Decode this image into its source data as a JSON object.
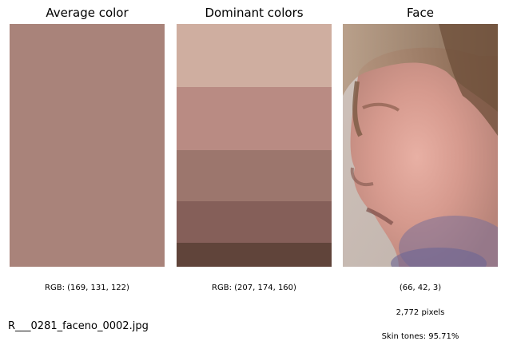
{
  "panels": {
    "average": {
      "title": "Average color",
      "rgb_text": "RGB: (169, 131, 122)",
      "color": "#a9837a"
    },
    "dominant": {
      "title": "Dominant colors",
      "rgb_text": "RGB: (207, 174, 160)",
      "bands": [
        {
          "color": "#cfaea0",
          "share": 0.26
        },
        {
          "color": "#b98b83",
          "share": 0.26
        },
        {
          "color": "#9c766d",
          "share": 0.21
        },
        {
          "color": "#855f59",
          "share": 0.17
        },
        {
          "color": "#60443a",
          "share": 0.1
        }
      ]
    },
    "face": {
      "title": "Face",
      "value_text": "(66, 42, 3)",
      "pixels_text": "2,772 pixels",
      "skin_text": "Skin tones: 95.71%"
    }
  },
  "filename": "R___0281_faceno_0002.jpg"
}
